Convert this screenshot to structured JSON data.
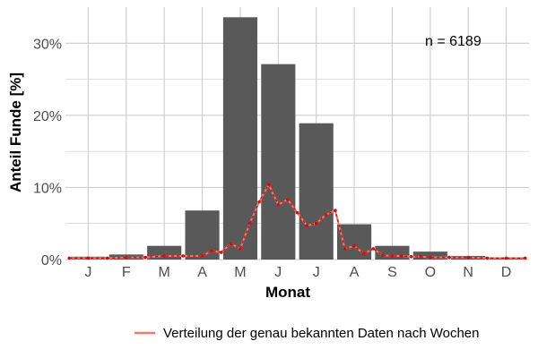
{
  "chart_data": {
    "type": "bar",
    "xlabel": "Monat",
    "ylabel": "Anteil Funde [%]",
    "categories": [
      "J",
      "F",
      "M",
      "A",
      "M",
      "J",
      "J",
      "A",
      "S",
      "O",
      "N",
      "D"
    ],
    "values": [
      0.4,
      0.7,
      1.9,
      6.8,
      33.6,
      27.1,
      18.9,
      4.9,
      1.9,
      1.1,
      0.5,
      0.3
    ],
    "ylim": [
      0,
      35
    ],
    "yticks": [
      0,
      10,
      20,
      30
    ],
    "ytick_labels": [
      "0%",
      "10%",
      "20%",
      "30%"
    ],
    "grid": true,
    "annotation": "n = 6189",
    "legend_position": "bottom",
    "series": [
      {
        "name": "Verteilung der genau bekannten Daten nach Wochen",
        "type": "line",
        "x": [
          0.5,
          1.0,
          1.5,
          2.0,
          2.5,
          3.0,
          3.5,
          4.0,
          4.25,
          4.5,
          4.75,
          5.0,
          5.25,
          5.5,
          5.75,
          6.0,
          6.25,
          6.5,
          6.75,
          7.0,
          7.25,
          7.5,
          7.75,
          8.0,
          8.25,
          8.5,
          8.75,
          9.0,
          9.25,
          9.5,
          9.75,
          10.0,
          10.5,
          11.0,
          11.5,
          12.0,
          12.5
        ],
        "values": [
          0.2,
          0.2,
          0.2,
          0.3,
          0.3,
          0.5,
          0.5,
          0.5,
          1.2,
          1.0,
          2.2,
          1.5,
          5.0,
          8.0,
          10.4,
          7.6,
          8.3,
          6.5,
          4.7,
          5.0,
          6.2,
          6.8,
          1.5,
          1.9,
          0.8,
          1.5,
          0.6,
          0.5,
          0.5,
          0.4,
          0.4,
          0.3,
          0.3,
          0.3,
          0.2,
          0.2,
          0.2
        ],
        "color": "#f8766d",
        "marker_color": "#cc1111"
      }
    ],
    "colors": {
      "bar": "#595959",
      "grid": "#cccccc"
    }
  }
}
